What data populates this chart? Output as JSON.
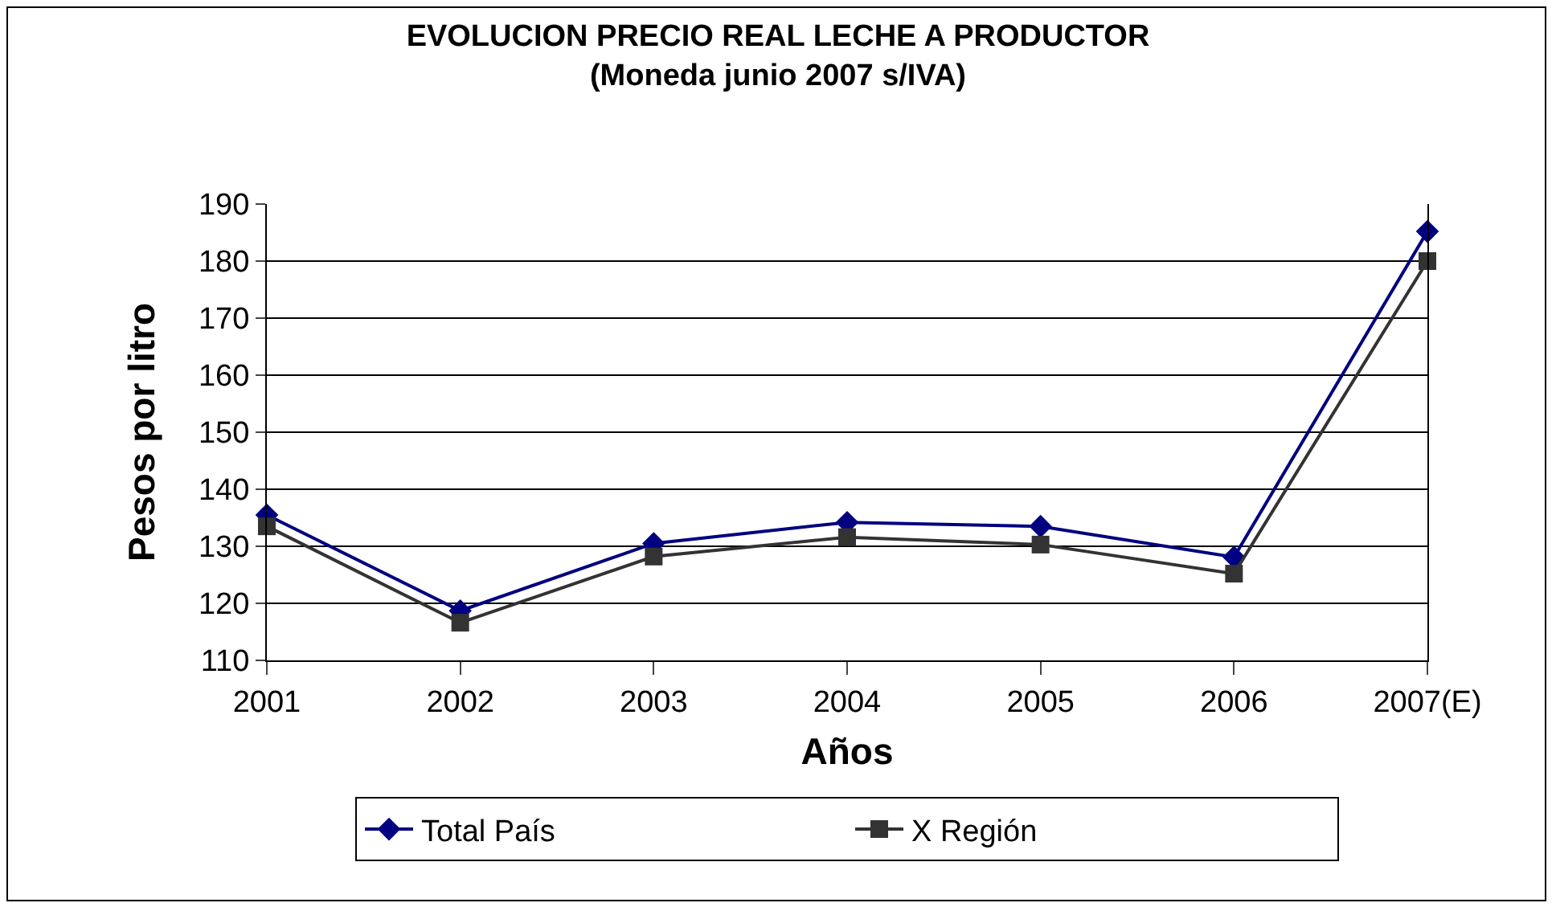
{
  "chart_data": {
    "type": "line",
    "title": "EVOLUCION PRECIO REAL LECHE A PRODUCTOR",
    "subtitle": "(Moneda junio 2007 s/IVA)",
    "xlabel": "Años",
    "ylabel": "Pesos por litro",
    "categories": [
      "2001",
      "2002",
      "2003",
      "2004",
      "2005",
      "2006",
      "2007(E)"
    ],
    "series": [
      {
        "name": "Total País",
        "color": "#000080",
        "marker": "diamond",
        "values": [
          135.5,
          118.7,
          130.5,
          134.2,
          133.5,
          128.1,
          185.2
        ]
      },
      {
        "name": "X Región",
        "color": "#333333",
        "marker": "square",
        "values": [
          133.5,
          116.6,
          128.2,
          131.6,
          130.3,
          125.2,
          180
        ]
      }
    ],
    "ylim": [
      110,
      190
    ],
    "yticks": [
      110,
      120,
      130,
      140,
      150,
      160,
      170,
      180,
      190
    ],
    "grid": "y",
    "legend": "bottom",
    "line_style": "solid"
  }
}
